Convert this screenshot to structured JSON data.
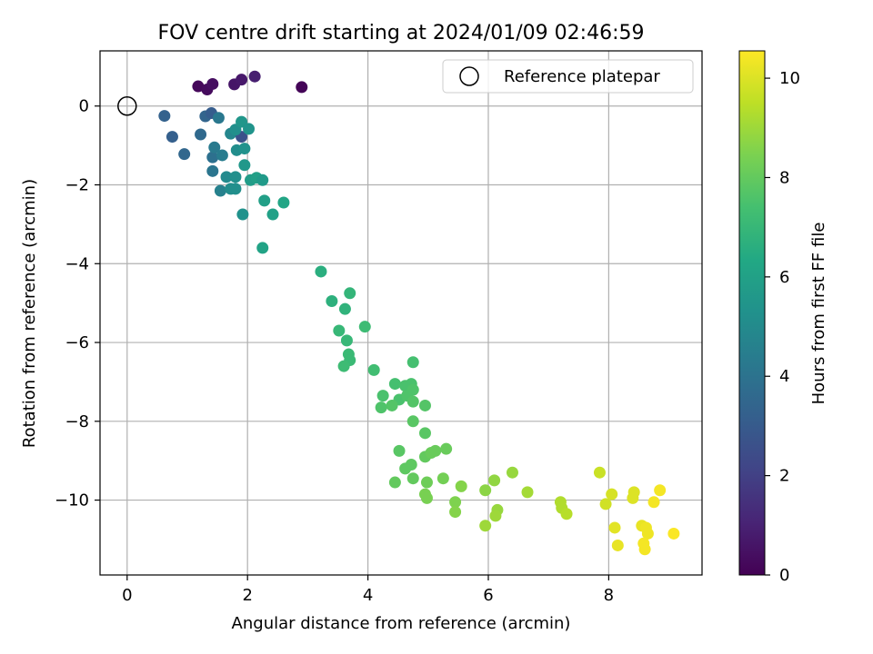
{
  "chart_data": {
    "type": "scatter",
    "title": "FOV centre drift starting at 2024/01/09 02:46:59",
    "xlabel": "Angular distance from reference (arcmin)",
    "ylabel": "Rotation from reference (arcmin)",
    "xlim": [
      -0.45,
      9.55
    ],
    "ylim": [
      -11.9,
      1.4
    ],
    "xticks": [
      0,
      2,
      4,
      6,
      8
    ],
    "xtick_labels": [
      "0",
      "2",
      "4",
      "6",
      "8"
    ],
    "yticks": [
      0,
      -2,
      -4,
      -6,
      -8,
      -10
    ],
    "ytick_labels": [
      "0",
      "−2",
      "−4",
      "−6",
      "−8",
      "−10"
    ],
    "grid": true,
    "legend": {
      "position": "top-right",
      "entries": [
        {
          "label": "Reference platepar",
          "marker": "open-circle"
        }
      ]
    },
    "reference_point": {
      "x": 0,
      "y": 0
    },
    "colorbar": {
      "label": "Hours from first FF file",
      "range": [
        0,
        10.55
      ],
      "ticks": [
        0,
        2,
        4,
        6,
        8,
        10
      ],
      "tick_labels": [
        "0",
        "2",
        "4",
        "6",
        "8",
        "10"
      ],
      "colormap": "viridis"
    },
    "series": [
      {
        "x_y_hours": [
          [
            1.18,
            0.5,
            0.2
          ],
          [
            1.33,
            0.42,
            0.3
          ],
          [
            1.42,
            0.56,
            0.4
          ],
          [
            1.78,
            0.55,
            0.6
          ],
          [
            1.9,
            0.67,
            0.7
          ],
          [
            2.12,
            0.75,
            0.9
          ],
          [
            2.9,
            0.48,
            0.1
          ],
          [
            0.62,
            -0.25,
            3.3
          ],
          [
            0.75,
            -0.78,
            3.2
          ],
          [
            0.95,
            -1.22,
            3.5
          ],
          [
            1.22,
            -0.72,
            3.6
          ],
          [
            1.3,
            -0.26,
            3.4
          ],
          [
            1.4,
            -0.18,
            3.1
          ],
          [
            1.52,
            -0.3,
            4.2
          ],
          [
            1.42,
            -1.3,
            3.9
          ],
          [
            1.45,
            -1.05,
            4.3
          ],
          [
            1.42,
            -1.65,
            4.1
          ],
          [
            1.58,
            -1.25,
            4.4
          ],
          [
            1.55,
            -2.15,
            4.6
          ],
          [
            1.72,
            -0.7,
            4.8
          ],
          [
            1.9,
            -0.78,
            2.6
          ],
          [
            1.8,
            -0.6,
            5.2
          ],
          [
            1.9,
            -0.4,
            5.5
          ],
          [
            2.02,
            -0.58,
            5.4
          ],
          [
            1.82,
            -1.12,
            5.1
          ],
          [
            1.95,
            -1.08,
            5.3
          ],
          [
            1.65,
            -1.8,
            5.0
          ],
          [
            1.8,
            -1.8,
            5.2
          ],
          [
            1.72,
            -2.1,
            5.1
          ],
          [
            1.8,
            -2.1,
            5.2
          ],
          [
            1.95,
            -1.5,
            5.6
          ],
          [
            2.05,
            -1.88,
            5.8
          ],
          [
            2.15,
            -1.82,
            5.9
          ],
          [
            2.25,
            -1.88,
            5.7
          ],
          [
            1.92,
            -2.75,
            5.3
          ],
          [
            2.28,
            -2.4,
            5.9
          ],
          [
            2.42,
            -2.75,
            6.0
          ],
          [
            2.6,
            -2.45,
            6.2
          ],
          [
            2.25,
            -3.6,
            6.1
          ],
          [
            3.22,
            -4.2,
            6.6
          ],
          [
            3.4,
            -4.95,
            6.7
          ],
          [
            3.62,
            -5.15,
            6.8
          ],
          [
            3.7,
            -4.75,
            6.9
          ],
          [
            3.52,
            -5.7,
            7.0
          ],
          [
            3.65,
            -5.95,
            7.0
          ],
          [
            3.95,
            -5.6,
            7.2
          ],
          [
            3.68,
            -6.3,
            7.1
          ],
          [
            3.7,
            -6.45,
            7.1
          ],
          [
            3.6,
            -6.6,
            7.2
          ],
          [
            4.1,
            -6.7,
            7.3
          ],
          [
            4.75,
            -6.5,
            7.4
          ],
          [
            4.45,
            -7.05,
            7.4
          ],
          [
            4.62,
            -7.1,
            7.5
          ],
          [
            4.72,
            -7.05,
            7.5
          ],
          [
            4.25,
            -7.35,
            7.5
          ],
          [
            4.52,
            -7.45,
            7.5
          ],
          [
            4.65,
            -7.35,
            7.6
          ],
          [
            4.75,
            -7.2,
            7.6
          ],
          [
            4.22,
            -7.65,
            7.6
          ],
          [
            4.4,
            -7.6,
            7.7
          ],
          [
            4.75,
            -7.5,
            7.7
          ],
          [
            4.95,
            -7.6,
            7.7
          ],
          [
            4.75,
            -8.0,
            7.8
          ],
          [
            4.95,
            -8.3,
            7.8
          ],
          [
            4.52,
            -8.75,
            7.8
          ],
          [
            4.72,
            -9.1,
            7.9
          ],
          [
            4.62,
            -9.2,
            7.9
          ],
          [
            4.45,
            -9.55,
            8.0
          ],
          [
            4.75,
            -9.45,
            8.0
          ],
          [
            4.95,
            -8.9,
            8.0
          ],
          [
            5.05,
            -8.8,
            8.1
          ],
          [
            5.12,
            -8.75,
            8.1
          ],
          [
            5.3,
            -8.7,
            8.1
          ],
          [
            4.98,
            -9.55,
            8.2
          ],
          [
            5.25,
            -9.45,
            8.3
          ],
          [
            4.95,
            -9.85,
            8.4
          ],
          [
            4.98,
            -9.95,
            8.4
          ],
          [
            5.45,
            -10.05,
            8.5
          ],
          [
            5.45,
            -10.3,
            8.6
          ],
          [
            5.55,
            -9.65,
            8.6
          ],
          [
            5.95,
            -9.75,
            8.7
          ],
          [
            6.1,
            -9.5,
            8.8
          ],
          [
            6.4,
            -9.3,
            8.9
          ],
          [
            6.15,
            -10.25,
            8.9
          ],
          [
            6.12,
            -10.4,
            9.0
          ],
          [
            5.95,
            -10.65,
            9.0
          ],
          [
            6.65,
            -9.8,
            9.1
          ],
          [
            7.2,
            -10.05,
            9.3
          ],
          [
            7.22,
            -10.2,
            9.3
          ],
          [
            7.3,
            -10.35,
            9.4
          ],
          [
            7.85,
            -9.3,
            9.7
          ],
          [
            7.95,
            -10.1,
            9.8
          ],
          [
            8.05,
            -9.85,
            9.9
          ],
          [
            8.42,
            -9.8,
            10.0
          ],
          [
            8.4,
            -9.95,
            10.0
          ],
          [
            8.1,
            -10.7,
            10.1
          ],
          [
            8.15,
            -11.15,
            10.2
          ],
          [
            8.55,
            -10.65,
            10.2
          ],
          [
            8.62,
            -10.7,
            10.3
          ],
          [
            8.65,
            -10.85,
            10.3
          ],
          [
            8.58,
            -11.1,
            10.4
          ],
          [
            8.6,
            -11.25,
            10.4
          ],
          [
            8.75,
            -10.05,
            10.4
          ],
          [
            8.85,
            -9.75,
            10.4
          ],
          [
            9.08,
            -10.85,
            10.5
          ]
        ]
      }
    ]
  }
}
